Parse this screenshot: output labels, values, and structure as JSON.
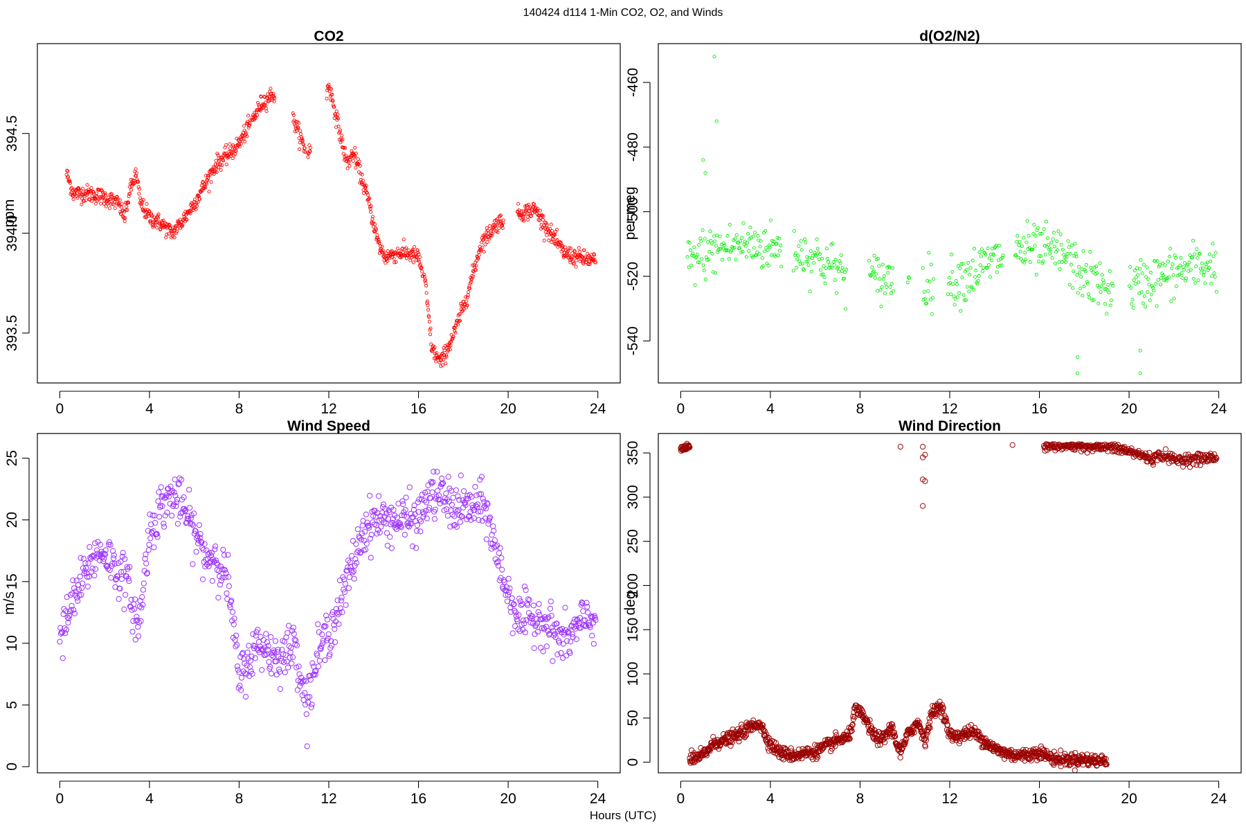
{
  "figure": {
    "title": "140424   d114   1-Min CO2, O2, and Winds",
    "xlabel": "Hours (UTC)"
  },
  "chart_data": [
    {
      "id": "co2",
      "type": "scatter",
      "title": "CO2",
      "xlabel": "",
      "ylabel": "ppm",
      "xlim": [
        -1,
        25
      ],
      "ylim": [
        393.25,
        394.95
      ],
      "xticks": [
        0,
        4,
        8,
        12,
        16,
        20,
        24
      ],
      "yticks": [
        393.5,
        394.0,
        394.5
      ],
      "ytick_labels": [
        "393.5",
        "394.0",
        "394.5"
      ],
      "color": "#ff0000",
      "marker_size": "small",
      "grid": false,
      "profile": [
        [
          0.3,
          394.3
        ],
        [
          0.6,
          394.2
        ],
        [
          1.2,
          394.2
        ],
        [
          2.0,
          394.18
        ],
        [
          2.6,
          394.15
        ],
        [
          2.9,
          394.08
        ],
        [
          3.1,
          394.2
        ],
        [
          3.4,
          394.3
        ],
        [
          3.6,
          394.15
        ],
        [
          4.0,
          394.08
        ],
        [
          4.5,
          394.05
        ],
        [
          5.0,
          394.0
        ],
        [
          5.4,
          394.05
        ],
        [
          6.0,
          394.15
        ],
        [
          6.5,
          394.25
        ],
        [
          7.0,
          394.35
        ],
        [
          7.6,
          394.4
        ],
        [
          8.0,
          394.45
        ],
        [
          8.5,
          394.55
        ],
        [
          9.0,
          394.65
        ],
        [
          9.5,
          394.7
        ],
        [
          10.5,
          394.55
        ],
        [
          11.0,
          394.4
        ],
        [
          11.5,
          394.45
        ],
        [
          12.0,
          394.75
        ],
        [
          12.4,
          394.55
        ],
        [
          12.8,
          394.35
        ],
        [
          13.1,
          394.4
        ],
        [
          13.4,
          394.3
        ],
        [
          13.8,
          394.15
        ],
        [
          14.2,
          393.95
        ],
        [
          14.5,
          393.88
        ],
        [
          15.0,
          393.9
        ],
        [
          15.5,
          393.9
        ],
        [
          16.0,
          393.88
        ],
        [
          16.3,
          393.75
        ],
        [
          16.6,
          393.42
        ],
        [
          17.0,
          393.35
        ],
        [
          17.6,
          393.5
        ],
        [
          18.2,
          393.7
        ],
        [
          18.8,
          393.95
        ],
        [
          19.5,
          394.05
        ],
        [
          20.0,
          394.08
        ],
        [
          20.5,
          394.1
        ],
        [
          21.2,
          394.12
        ],
        [
          21.6,
          394.05
        ],
        [
          22.0,
          393.98
        ],
        [
          22.5,
          393.9
        ],
        [
          23.0,
          393.88
        ],
        [
          23.5,
          393.87
        ],
        [
          23.9,
          393.86
        ]
      ],
      "gaps": [
        [
          5.1,
          5.1
        ],
        [
          8.5,
          8.55
        ],
        [
          9.6,
          10.4
        ],
        [
          10.95,
          11.05
        ],
        [
          11.2,
          11.9
        ],
        [
          15.0,
          15.05
        ],
        [
          16.2,
          16.25
        ],
        [
          19.8,
          20.4
        ],
        [
          22.0,
          22.0
        ]
      ],
      "noise": 0.035,
      "n_points": 1300
    },
    {
      "id": "o2",
      "type": "scatter",
      "title": "d(O2/N2)",
      "xlabel": "",
      "ylabel": "per meg",
      "xlim": [
        -1,
        25
      ],
      "ylim": [
        -553,
        -448
      ],
      "xticks": [
        0,
        4,
        8,
        12,
        16,
        20,
        24
      ],
      "yticks": [
        -540,
        -520,
        -500,
        -480,
        -460
      ],
      "ytick_labels": [
        "-540",
        "-520",
        "-500",
        "-480",
        "-460"
      ],
      "color": "#00ee00",
      "marker_size": "small",
      "grid": false,
      "profile": [
        [
          0.3,
          -516
        ],
        [
          1.0,
          -513
        ],
        [
          2.0,
          -511
        ],
        [
          3.0,
          -510
        ],
        [
          4.0,
          -511
        ],
        [
          5.0,
          -512
        ],
        [
          6.0,
          -514
        ],
        [
          7.0,
          -518
        ],
        [
          8.0,
          -520
        ],
        [
          9.0,
          -521
        ],
        [
          10.0,
          -520
        ],
        [
          11.0,
          -522
        ],
        [
          12.0,
          -522
        ],
        [
          13.0,
          -519
        ],
        [
          14.0,
          -515
        ],
        [
          15.0,
          -512
        ],
        [
          16.0,
          -512
        ],
        [
          17.0,
          -513
        ],
        [
          18.0,
          -520
        ],
        [
          19.0,
          -524
        ],
        [
          20.0,
          -524
        ],
        [
          21.0,
          -521
        ],
        [
          22.0,
          -519
        ],
        [
          23.0,
          -517
        ],
        [
          23.9,
          -516
        ]
      ],
      "gaps": [
        [
          4.5,
          5.0
        ],
        [
          7.4,
          8.4
        ],
        [
          9.5,
          10.1
        ],
        [
          10.2,
          10.8
        ],
        [
          11.3,
          11.9
        ],
        [
          14.4,
          14.9
        ],
        [
          19.3,
          20.0
        ]
      ],
      "noise": 6.5,
      "n_points": 700,
      "outliers": [
        [
          1.5,
          -452
        ],
        [
          1.6,
          -472
        ],
        [
          1.1,
          -488
        ],
        [
          1.0,
          -484
        ],
        [
          17.7,
          -545
        ],
        [
          17.7,
          -550
        ],
        [
          20.5,
          -550
        ],
        [
          20.5,
          -543
        ]
      ]
    },
    {
      "id": "wind_speed",
      "type": "scatter",
      "title": "Wind Speed",
      "xlabel": "",
      "ylabel": "m/s",
      "xlim": [
        -1,
        25
      ],
      "ylim": [
        -0.5,
        27
      ],
      "xticks": [
        0,
        4,
        8,
        12,
        16,
        20,
        24
      ],
      "yticks": [
        0,
        5,
        10,
        15,
        20,
        25
      ],
      "ytick_labels": [
        "0",
        "5",
        "10",
        "15",
        "20",
        "25"
      ],
      "color": "#9b30ff",
      "marker_size": "large",
      "grid": false,
      "profile": [
        [
          0.0,
          10
        ],
        [
          0.5,
          13
        ],
        [
          1.0,
          15
        ],
        [
          1.5,
          17
        ],
        [
          2.0,
          17.5
        ],
        [
          2.5,
          16
        ],
        [
          3.0,
          15
        ],
        [
          3.5,
          11
        ],
        [
          4.0,
          19
        ],
        [
          4.5,
          21
        ],
        [
          5.0,
          22
        ],
        [
          5.5,
          21
        ],
        [
          6.0,
          19
        ],
        [
          6.5,
          17
        ],
        [
          7.0,
          17
        ],
        [
          7.5,
          15
        ],
        [
          8.0,
          7
        ],
        [
          8.5,
          9
        ],
        [
          9.0,
          10
        ],
        [
          9.5,
          9
        ],
        [
          10.0,
          9
        ],
        [
          10.5,
          10
        ],
        [
          11.0,
          5
        ],
        [
          11.5,
          9
        ],
        [
          12.0,
          11
        ],
        [
          12.5,
          13
        ],
        [
          13.0,
          16
        ],
        [
          13.5,
          19
        ],
        [
          14.0,
          20
        ],
        [
          14.5,
          20
        ],
        [
          15.0,
          20
        ],
        [
          15.5,
          20
        ],
        [
          16.0,
          20
        ],
        [
          16.5,
          22
        ],
        [
          17.0,
          22
        ],
        [
          17.5,
          21
        ],
        [
          18.0,
          21
        ],
        [
          18.5,
          21
        ],
        [
          19.0,
          21
        ],
        [
          19.5,
          17
        ],
        [
          20.0,
          14
        ],
        [
          20.5,
          12
        ],
        [
          21.0,
          12
        ],
        [
          21.5,
          12
        ],
        [
          22.0,
          11
        ],
        [
          22.5,
          10
        ],
        [
          23.0,
          11
        ],
        [
          23.5,
          12
        ],
        [
          23.9,
          12
        ]
      ],
      "gaps": [],
      "noise": 1.6,
      "n_points": 900
    },
    {
      "id": "wind_direction",
      "type": "scatter",
      "title": "Wind Direction",
      "xlabel": "",
      "ylabel": "deg",
      "xlim": [
        -1,
        25
      ],
      "ylim": [
        -12,
        372
      ],
      "xticks": [
        0,
        4,
        8,
        12,
        16,
        20,
        24
      ],
      "yticks": [
        0,
        50,
        100,
        150,
        200,
        250,
        300,
        350
      ],
      "ytick_labels": [
        "0",
        "50",
        "100",
        "150",
        "200",
        "250",
        "300",
        "350"
      ],
      "color": "#9b0000",
      "marker_size": "large",
      "grid": false,
      "profile": [
        [
          0.4,
          2
        ],
        [
          1.0,
          8
        ],
        [
          1.5,
          22
        ],
        [
          2.0,
          25
        ],
        [
          2.5,
          30
        ],
        [
          3.0,
          38
        ],
        [
          3.5,
          45
        ],
        [
          4.0,
          20
        ],
        [
          4.5,
          10
        ],
        [
          5.0,
          8
        ],
        [
          5.5,
          10
        ],
        [
          6.0,
          12
        ],
        [
          6.5,
          18
        ],
        [
          7.0,
          25
        ],
        [
          7.5,
          28
        ],
        [
          7.8,
          60
        ],
        [
          8.2,
          50
        ],
        [
          8.6,
          30
        ],
        [
          9.0,
          25
        ],
        [
          9.4,
          40
        ],
        [
          9.8,
          10
        ],
        [
          10.2,
          35
        ],
        [
          10.6,
          45
        ],
        [
          10.9,
          25
        ],
        [
          11.2,
          55
        ],
        [
          11.6,
          65
        ],
        [
          12.0,
          30
        ],
        [
          12.5,
          30
        ],
        [
          13.0,
          35
        ],
        [
          13.5,
          25
        ],
        [
          14.0,
          15
        ],
        [
          14.5,
          10
        ],
        [
          15.0,
          8
        ],
        [
          15.5,
          8
        ],
        [
          16.0,
          12
        ],
        [
          16.5,
          5
        ],
        [
          17.0,
          3
        ],
        [
          17.5,
          3
        ],
        [
          18.0,
          3
        ],
        [
          18.5,
          2
        ],
        [
          19.0,
          1
        ]
      ],
      "gaps": [],
      "noise": 6,
      "n_points": 1050,
      "high_cluster": [
        [
          0.0,
          355
        ],
        [
          0.4,
          357
        ]
      ],
      "high_profile": [
        [
          16.2,
          359
        ],
        [
          17.5,
          359
        ],
        [
          18.5,
          358
        ],
        [
          19.5,
          355
        ],
        [
          20.5,
          348
        ],
        [
          21.0,
          343
        ],
        [
          21.5,
          348
        ],
        [
          22.0,
          342
        ],
        [
          22.5,
          343
        ],
        [
          23.0,
          343
        ],
        [
          23.5,
          344
        ],
        [
          23.9,
          345
        ]
      ],
      "high_points": 320,
      "outliers": [
        [
          9.8,
          357
        ],
        [
          10.8,
          357
        ],
        [
          10.8,
          345
        ],
        [
          10.9,
          348
        ],
        [
          10.9,
          318
        ],
        [
          10.8,
          320
        ],
        [
          10.8,
          290
        ],
        [
          14.8,
          359
        ]
      ]
    }
  ]
}
